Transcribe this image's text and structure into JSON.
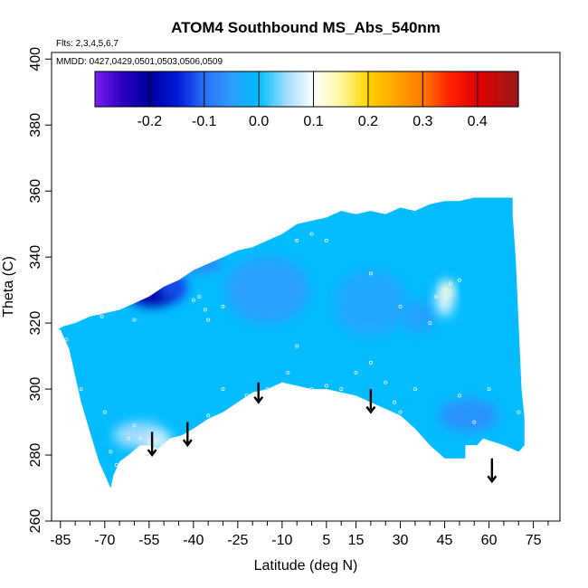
{
  "chart_data": {
    "type": "heatmap",
    "title": "ATOM4 Southbound MS_Abs_540nm",
    "flights_note": "Flts: 2,3,4,5,6,7",
    "dates_note": "MMDD: 0427,0429,0501,0503,0506,0509",
    "xlabel": "Latitude (deg N)",
    "ylabel": "Theta (C)",
    "xlim": [
      -88,
      84
    ],
    "ylim": [
      260,
      402
    ],
    "x_ticks": [
      -85,
      -70,
      -55,
      -40,
      -25,
      -10,
      5,
      15,
      30,
      45,
      60,
      75
    ],
    "x_minor_ticks": [
      -80,
      -75,
      -65,
      -60,
      -50,
      -45,
      -35,
      -30,
      -20,
      -15,
      -5,
      0,
      10,
      20,
      25,
      35,
      40,
      50,
      55,
      65,
      70,
      80
    ],
    "y_ticks": [
      260,
      280,
      300,
      320,
      340,
      360,
      380,
      400
    ],
    "colorbar": {
      "range": [
        -0.3,
        0.475
      ],
      "ticks": [
        -0.2,
        -0.1,
        0.0,
        0.1,
        0.2,
        0.3,
        0.4
      ],
      "tick_labels": [
        "-0.2",
        "-0.1",
        "0.0",
        "0.1",
        "0.2",
        "0.3",
        "0.4"
      ],
      "stops": [
        {
          "v": -0.3,
          "color": "#7a1ef0"
        },
        {
          "v": -0.25,
          "color": "#2a00c0"
        },
        {
          "v": -0.2,
          "color": "#00009a"
        },
        {
          "v": -0.15,
          "color": "#0018d8"
        },
        {
          "v": -0.1,
          "color": "#2a6ff5"
        },
        {
          "v": -0.05,
          "color": "#2d9cff"
        },
        {
          "v": 0.0,
          "color": "#00bfff"
        },
        {
          "v": 0.05,
          "color": "#9fdcff"
        },
        {
          "v": 0.1,
          "color": "#ffffff"
        },
        {
          "v": 0.15,
          "color": "#fff7a0"
        },
        {
          "v": 0.2,
          "color": "#ffd400"
        },
        {
          "v": 0.25,
          "color": "#ffa500"
        },
        {
          "v": 0.3,
          "color": "#ff7a00"
        },
        {
          "v": 0.35,
          "color": "#ff2000"
        },
        {
          "v": 0.4,
          "color": "#e00000"
        },
        {
          "v": 0.475,
          "color": "#9a1a1a"
        }
      ]
    },
    "field_boundary": [
      [
        -86,
        318
      ],
      [
        -85,
        318
      ],
      [
        -84,
        316
      ],
      [
        -82,
        312
      ],
      [
        -80,
        304
      ],
      [
        -78,
        296
      ],
      [
        -76,
        290
      ],
      [
        -74,
        284
      ],
      [
        -72,
        278
      ],
      [
        -70,
        274
      ],
      [
        -68,
        270
      ],
      [
        -67,
        274
      ],
      [
        -65,
        278
      ],
      [
        -62,
        280
      ],
      [
        -58,
        283
      ],
      [
        -55,
        283
      ],
      [
        -52,
        282
      ],
      [
        -48,
        285
      ],
      [
        -44,
        286
      ],
      [
        -40,
        288
      ],
      [
        -35,
        291
      ],
      [
        -30,
        293
      ],
      [
        -25,
        296
      ],
      [
        -20,
        299
      ],
      [
        -15,
        300
      ],
      [
        -10,
        302
      ],
      [
        -5,
        301
      ],
      [
        0,
        300
      ],
      [
        5,
        300
      ],
      [
        10,
        299
      ],
      [
        15,
        298
      ],
      [
        20,
        296
      ],
      [
        25,
        294
      ],
      [
        30,
        292
      ],
      [
        35,
        288
      ],
      [
        40,
        283
      ],
      [
        45,
        279
      ],
      [
        52,
        279
      ],
      [
        52,
        283
      ],
      [
        56,
        283
      ],
      [
        58,
        285
      ],
      [
        65,
        283
      ],
      [
        70,
        281
      ],
      [
        72,
        283
      ],
      [
        72,
        291
      ],
      [
        71,
        300
      ],
      [
        70,
        320
      ],
      [
        69,
        340
      ],
      [
        68,
        353
      ],
      [
        68,
        358
      ],
      [
        65,
        358
      ],
      [
        60,
        358
      ],
      [
        55,
        358
      ],
      [
        50,
        357
      ],
      [
        45,
        357
      ],
      [
        40,
        356
      ],
      [
        35,
        354
      ],
      [
        30,
        355
      ],
      [
        25,
        353
      ],
      [
        20,
        354
      ],
      [
        15,
        353
      ],
      [
        10,
        354
      ],
      [
        5,
        352
      ],
      [
        0,
        351
      ],
      [
        -5,
        350
      ],
      [
        -10,
        347
      ],
      [
        -15,
        345
      ],
      [
        -20,
        343
      ],
      [
        -25,
        342
      ],
      [
        -30,
        340
      ],
      [
        -35,
        338
      ],
      [
        -40,
        336
      ],
      [
        -45,
        333
      ],
      [
        -50,
        331
      ],
      [
        -55,
        328
      ],
      [
        -60,
        326
      ],
      [
        -65,
        324
      ],
      [
        -70,
        323
      ],
      [
        -75,
        322
      ],
      [
        -80,
        320
      ],
      [
        -84,
        319
      ]
    ],
    "field_base_value": -0.005,
    "field_features": [
      {
        "x": -54,
        "y": 330,
        "rx": 9,
        "ry": 5,
        "value": -0.19
      },
      {
        "x": -47,
        "y": 331,
        "rx": 5,
        "ry": 4,
        "value": -0.12
      },
      {
        "x": -40,
        "y": 338,
        "rx": 10,
        "ry": 3,
        "value": -0.07
      },
      {
        "x": -58,
        "y": 286,
        "rx": 9,
        "ry": 4,
        "value": 0.05
      },
      {
        "x": -52,
        "y": 284,
        "rx": 5,
        "ry": 2.5,
        "value": 0.08
      },
      {
        "x": -15,
        "y": 330,
        "rx": 14,
        "ry": 10,
        "value": -0.045
      },
      {
        "x": 20,
        "y": 326,
        "rx": 12,
        "ry": 10,
        "value": -0.035
      },
      {
        "x": 53,
        "y": 292,
        "rx": 10,
        "ry": 5,
        "value": -0.06
      },
      {
        "x": 36,
        "y": 322,
        "rx": 6,
        "ry": 5,
        "value": -0.04
      },
      {
        "x": 45,
        "y": 327,
        "rx": 3,
        "ry": 5,
        "value": 0.08
      },
      {
        "x": 46,
        "y": 330,
        "rx": 2,
        "ry": 3,
        "value": 0.12
      }
    ],
    "sample_points": [
      [
        -70,
        325
      ],
      [
        -72,
        323
      ],
      [
        -71,
        322
      ],
      [
        -65,
        325
      ],
      [
        -83,
        315
      ],
      [
        -60,
        321
      ],
      [
        -52,
        336
      ],
      [
        -55,
        329
      ],
      [
        -40,
        327
      ],
      [
        -38,
        328
      ],
      [
        -36,
        324
      ],
      [
        -30,
        325
      ],
      [
        -35,
        321
      ],
      [
        -78,
        300
      ],
      [
        -70,
        293
      ],
      [
        -60,
        289
      ],
      [
        -58,
        285
      ],
      [
        -55,
        284
      ],
      [
        -50,
        283
      ],
      [
        -45,
        285
      ],
      [
        -40,
        287
      ],
      [
        -35,
        292
      ],
      [
        -30,
        300
      ],
      [
        -22,
        298
      ],
      [
        -15,
        300
      ],
      [
        -8,
        305
      ],
      [
        -5,
        313
      ],
      [
        0,
        300
      ],
      [
        5,
        301
      ],
      [
        10,
        300
      ],
      [
        15,
        305
      ],
      [
        20,
        308
      ],
      [
        25,
        302
      ],
      [
        28,
        296
      ],
      [
        30,
        293
      ],
      [
        35,
        300
      ],
      [
        40,
        320
      ],
      [
        42,
        328
      ],
      [
        45,
        330
      ],
      [
        47,
        332
      ],
      [
        50,
        333
      ],
      [
        50,
        298
      ],
      [
        55,
        290
      ],
      [
        60,
        300
      ],
      [
        70,
        293
      ],
      [
        71,
        281
      ],
      [
        0,
        347
      ],
      [
        -5,
        345
      ],
      [
        5,
        345
      ],
      [
        20,
        335
      ],
      [
        30,
        325
      ],
      [
        -68,
        281
      ],
      [
        -66,
        277
      ],
      [
        -64,
        275
      ],
      [
        -62,
        285
      ]
    ],
    "arrows": [
      {
        "x": -54,
        "y_top": 287,
        "y_tip": 280
      },
      {
        "x": -42,
        "y_top": 290,
        "y_tip": 283
      },
      {
        "x": -18,
        "y_top": 302,
        "y_tip": 296
      },
      {
        "x": 20,
        "y_top": 300,
        "y_tip": 293
      },
      {
        "x": 61,
        "y_top": 279,
        "y_tip": 272
      }
    ]
  }
}
